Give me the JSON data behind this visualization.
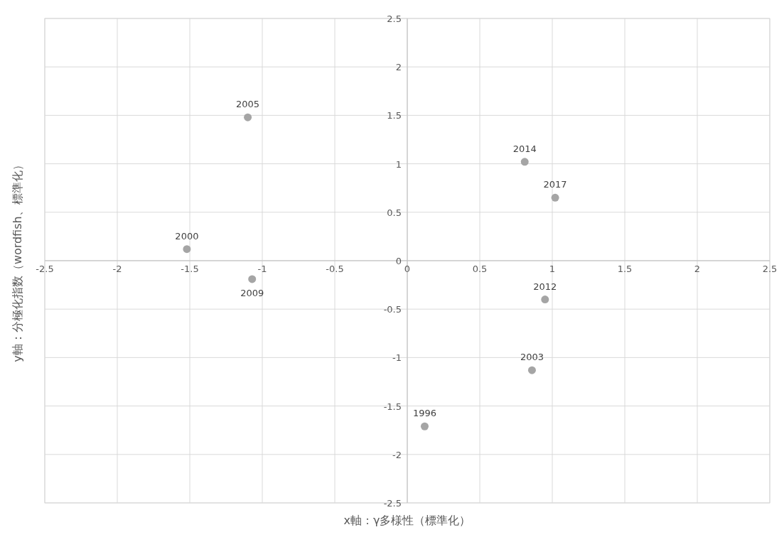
{
  "chart_data": {
    "type": "scatter",
    "xlabel": "x軸：γ多様性（標準化）",
    "ylabel": "y軸：分極化指数（wordfish、標準化）",
    "x": [
      -1.1,
      0.81,
      1.02,
      -1.52,
      -1.07,
      0.95,
      0.86,
      0.12
    ],
    "values": [
      1.48,
      1.02,
      0.65,
      0.12,
      -0.19,
      -0.4,
      -1.13,
      -1.71
    ],
    "color": "#a5a5a5",
    "marker": "circle",
    "grid": true,
    "xlim": [
      -2.5,
      2.5
    ],
    "xticks": [
      -2.5,
      -2,
      -1.5,
      -1,
      -0.5,
      0,
      0.5,
      1,
      1.5,
      2,
      2.5
    ],
    "ylim": [
      -2.5,
      2.5
    ],
    "yticks": [
      -2.5,
      -2,
      -1.5,
      -1,
      -0.5,
      0,
      0.5,
      1,
      1.5,
      2,
      2.5
    ],
    "annotations": [
      {
        "text": "2005",
        "x": -1.1,
        "y": 1.48
      },
      {
        "text": "2014",
        "x": 0.81,
        "y": 1.02
      },
      {
        "text": "2017",
        "x": 1.02,
        "y": 0.65
      },
      {
        "text": "2000",
        "x": -1.52,
        "y": 0.12
      },
      {
        "text": "2009",
        "x": -1.07,
        "y": -0.19
      },
      {
        "text": "2012",
        "x": 0.95,
        "y": -0.4
      },
      {
        "text": "2003",
        "x": 0.86,
        "y": -1.13
      },
      {
        "text": "1996",
        "x": 0.12,
        "y": -1.71
      }
    ]
  }
}
